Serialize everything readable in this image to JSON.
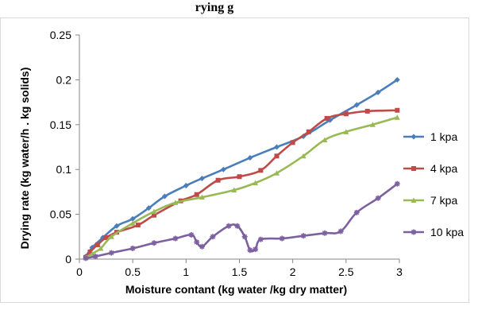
{
  "title_fragment": "rying g",
  "chart_data": {
    "type": "line",
    "title": "",
    "xlabel": "Moisture contant (kg water /kg dry matter)",
    "ylabel": "Drying rate (kg water/h . kg solids)",
    "xlim": [
      0,
      3
    ],
    "ylim": [
      0,
      0.25
    ],
    "x_ticks": [
      0,
      0.5,
      1,
      1.5,
      2,
      2.5,
      3
    ],
    "x_tick_labels": [
      "0",
      "0.5",
      "1",
      "1.5",
      "2",
      "2.5",
      "3"
    ],
    "y_ticks": [
      0,
      0.05,
      0.1,
      0.15,
      0.2,
      0.25
    ],
    "y_tick_labels": [
      "0",
      "0.05",
      "0.1",
      "0.15",
      "0.2",
      "0.25"
    ],
    "grid": false,
    "legend_position": "right",
    "series": [
      {
        "name": "1 kpa",
        "color": "#4a7ebb",
        "marker": "diamond",
        "points": [
          [
            0.06,
            0.003
          ],
          [
            0.12,
            0.013
          ],
          [
            0.22,
            0.024
          ],
          [
            0.35,
            0.037
          ],
          [
            0.5,
            0.045
          ],
          [
            0.65,
            0.057
          ],
          [
            0.8,
            0.07
          ],
          [
            1.0,
            0.082
          ],
          [
            1.15,
            0.09
          ],
          [
            1.35,
            0.1
          ],
          [
            1.6,
            0.113
          ],
          [
            1.85,
            0.125
          ],
          [
            2.1,
            0.137
          ],
          [
            2.35,
            0.155
          ],
          [
            2.6,
            0.172
          ],
          [
            2.8,
            0.186
          ],
          [
            2.98,
            0.2
          ]
        ]
      },
      {
        "name": "4 kpa",
        "color": "#be4b48",
        "marker": "square",
        "points": [
          [
            0.06,
            0.002
          ],
          [
            0.1,
            0.008
          ],
          [
            0.17,
            0.016
          ],
          [
            0.25,
            0.024
          ],
          [
            0.35,
            0.03
          ],
          [
            0.55,
            0.038
          ],
          [
            0.7,
            0.049
          ],
          [
            0.95,
            0.065
          ],
          [
            1.1,
            0.072
          ],
          [
            1.3,
            0.088
          ],
          [
            1.5,
            0.092
          ],
          [
            1.7,
            0.099
          ],
          [
            1.85,
            0.115
          ],
          [
            2.0,
            0.13
          ],
          [
            2.15,
            0.142
          ],
          [
            2.32,
            0.157
          ],
          [
            2.5,
            0.162
          ],
          [
            2.7,
            0.165
          ],
          [
            2.98,
            0.166
          ]
        ]
      },
      {
        "name": "7 kpa",
        "color": "#98b954",
        "marker": "triangle",
        "points": [
          [
            0.06,
            0.002
          ],
          [
            0.12,
            0.006
          ],
          [
            0.2,
            0.012
          ],
          [
            0.3,
            0.025
          ],
          [
            0.5,
            0.04
          ],
          [
            0.7,
            0.053
          ],
          [
            0.9,
            0.063
          ],
          [
            1.15,
            0.069
          ],
          [
            1.45,
            0.077
          ],
          [
            1.65,
            0.085
          ],
          [
            1.85,
            0.096
          ],
          [
            2.1,
            0.115
          ],
          [
            2.3,
            0.133
          ],
          [
            2.5,
            0.142
          ],
          [
            2.75,
            0.15
          ],
          [
            2.98,
            0.158
          ]
        ]
      },
      {
        "name": "10 kpa",
        "color": "#7d60a0",
        "marker": "star",
        "points": [
          [
            0.06,
            0.001
          ],
          [
            0.15,
            0.003
          ],
          [
            0.3,
            0.007
          ],
          [
            0.5,
            0.012
          ],
          [
            0.7,
            0.018
          ],
          [
            0.9,
            0.023
          ],
          [
            1.05,
            0.027
          ],
          [
            1.1,
            0.019
          ],
          [
            1.15,
            0.014
          ],
          [
            1.25,
            0.025
          ],
          [
            1.4,
            0.037
          ],
          [
            1.48,
            0.037
          ],
          [
            1.55,
            0.025
          ],
          [
            1.6,
            0.01
          ],
          [
            1.65,
            0.011
          ],
          [
            1.7,
            0.022
          ],
          [
            1.9,
            0.023
          ],
          [
            2.1,
            0.026
          ],
          [
            2.3,
            0.029
          ],
          [
            2.45,
            0.031
          ],
          [
            2.6,
            0.052
          ],
          [
            2.8,
            0.068
          ],
          [
            2.98,
            0.084
          ]
        ]
      }
    ]
  }
}
